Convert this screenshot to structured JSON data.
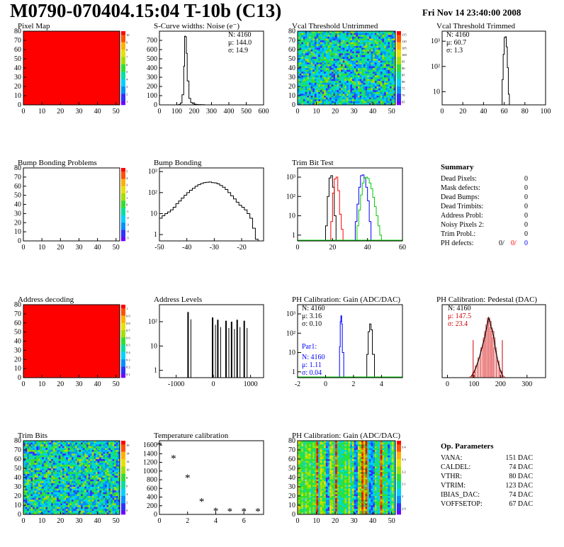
{
  "header": {
    "title": "M0790-070404.15:04 T-10b (C13)",
    "date": "Fri Nov 14 23:40:00 2008"
  },
  "colors": {
    "red": "#ff0000",
    "blue": "#0000ff",
    "green": "#00cc00",
    "dark_red": "#cc0000"
  },
  "chart_data": [
    {
      "id": "pixel_map",
      "type": "heatmap",
      "title": "Pixel Map",
      "xticks": [
        "0",
        "10",
        "20",
        "30",
        "40",
        "50"
      ],
      "yticks": [
        "0",
        "10",
        "20",
        "30",
        "40",
        "50",
        "60",
        "70",
        "80"
      ],
      "xlim": [
        0,
        52
      ],
      "ylim": [
        0,
        80
      ],
      "pattern": "uniform",
      "palette_ticks": [
        "10",
        "9",
        "8",
        "7",
        "6",
        "5",
        "4",
        "3",
        "2",
        "1"
      ]
    },
    {
      "id": "scurve",
      "type": "bar",
      "title": "S-Curve widths: Noise (e⁻)",
      "xticks": [
        "0",
        "100",
        "200",
        "300",
        "400",
        "500",
        "600"
      ],
      "yticks": [
        "0",
        "100",
        "200",
        "300",
        "400",
        "500",
        "600",
        "700"
      ],
      "xlim": [
        0,
        600
      ],
      "ylim": [
        0,
        800
      ],
      "stats": [
        "N: 4160",
        "μ: 144.0",
        "σ: 14.9"
      ],
      "x": [
        100,
        110,
        120,
        130,
        140,
        145,
        150,
        155,
        160,
        170,
        180,
        190,
        200,
        210,
        220,
        240,
        260
      ],
      "values": [
        0,
        4,
        20,
        110,
        420,
        745,
        740,
        560,
        260,
        70,
        25,
        14,
        8,
        5,
        3,
        2,
        0
      ]
    },
    {
      "id": "vcal_untrimmed",
      "type": "heatmap",
      "title": "Vcal Threshold Untrimmed",
      "xticks": [
        "0",
        "10",
        "20",
        "30",
        "40",
        "50"
      ],
      "yticks": [
        "0",
        "10",
        "20",
        "30",
        "40",
        "50",
        "60",
        "70",
        "80"
      ],
      "xlim": [
        0,
        52
      ],
      "ylim": [
        0,
        80
      ],
      "pattern": "noise",
      "palette_ticks": [
        "115",
        "110",
        "105",
        "100",
        "95",
        "90",
        "85",
        "80",
        "75",
        "70",
        "65"
      ]
    },
    {
      "id": "vcal_trimmed",
      "type": "bar",
      "title": "Vcal Threshold Trimmed",
      "log": true,
      "xticks": [
        "0",
        "20",
        "40",
        "60",
        "80",
        "100"
      ],
      "yticks": [
        "10",
        "10²",
        "10³"
      ],
      "xlim": [
        0,
        100
      ],
      "ylim": [
        3,
        2500
      ],
      "stats": [
        "N: 4160",
        "μ: 60.7",
        "σ: 1.3"
      ],
      "x": [
        57,
        58,
        59,
        60,
        61,
        62,
        63,
        64,
        65
      ],
      "values": [
        3,
        30,
        300,
        1400,
        1500,
        600,
        90,
        8,
        3
      ]
    },
    {
      "id": "bump_problems",
      "type": "heatmap",
      "title": "Bump Bonding Problems",
      "xticks": [
        "0",
        "10",
        "20",
        "30",
        "40",
        "50"
      ],
      "yticks": [
        "0",
        "10",
        "20",
        "30",
        "40",
        "50",
        "60",
        "70",
        "80"
      ],
      "xlim": [
        0,
        52
      ],
      "ylim": [
        0,
        80
      ],
      "pattern": "empty",
      "palette_ticks": [
        "5",
        "4",
        "3",
        "2",
        "1",
        "0",
        "-1",
        "-2",
        "-3",
        "-4",
        "-5"
      ]
    },
    {
      "id": "bump_bonding",
      "type": "bar",
      "title": "Bump Bonding",
      "log": true,
      "xticks": [
        "-50",
        "-40",
        "-30",
        "-20"
      ],
      "yticks": [
        "1",
        "10",
        "10²",
        "10³"
      ],
      "xlim": [
        -50,
        -12
      ],
      "ylim": [
        0.5,
        1500
      ],
      "x": [
        -50,
        -49,
        -48,
        -47,
        -46,
        -45,
        -44,
        -43,
        -42,
        -41,
        -40,
        -39,
        -38,
        -37,
        -36,
        -35,
        -34,
        -33,
        -32,
        -31,
        -30,
        -29,
        -28,
        -27,
        -26,
        -25,
        -24,
        -23,
        -22,
        -21,
        -20,
        -19,
        -18,
        -17,
        -16,
        -15,
        -14
      ],
      "values": [
        6,
        8,
        10,
        12,
        15,
        20,
        30,
        40,
        55,
        75,
        100,
        130,
        160,
        200,
        240,
        270,
        300,
        310,
        320,
        300,
        290,
        260,
        220,
        180,
        140,
        100,
        70,
        50,
        35,
        25,
        20,
        15,
        10,
        6,
        2,
        0.6,
        0.5
      ]
    },
    {
      "id": "trim_bit_test",
      "type": "line",
      "title": "Trim Bit Test",
      "log": true,
      "xticks": [
        "0",
        "20",
        "40",
        "60"
      ],
      "yticks": [
        "1",
        "10",
        "10²",
        "10³"
      ],
      "xlim": [
        0,
        60
      ],
      "ylim": [
        0.5,
        3000
      ],
      "series": [
        {
          "color": "#000000",
          "x": [
            15,
            16,
            17,
            18,
            19,
            20,
            21,
            22
          ],
          "values": [
            0.5,
            3,
            100,
            900,
            1200,
            300,
            10,
            0.5
          ]
        },
        {
          "color": "#ff0000",
          "x": [
            18,
            19,
            20,
            21,
            22,
            23,
            24,
            25,
            26
          ],
          "values": [
            0.5,
            5,
            150,
            800,
            1000,
            200,
            12,
            2,
            0.5
          ]
        },
        {
          "color": "#0000ff",
          "x": [
            32,
            33,
            34,
            35,
            36,
            37,
            38,
            39,
            40,
            41,
            42,
            43
          ],
          "values": [
            0.5,
            5,
            40,
            300,
            1200,
            1300,
            900,
            300,
            60,
            5,
            0.5,
            0.5
          ]
        },
        {
          "color": "#00cc00",
          "x": [
            33,
            34,
            35,
            36,
            37,
            38,
            39,
            40,
            41,
            42,
            43,
            44,
            45,
            46,
            47,
            48
          ],
          "values": [
            0.5,
            3,
            20,
            120,
            500,
            900,
            1000,
            850,
            500,
            250,
            90,
            30,
            10,
            3,
            1,
            0.5
          ]
        }
      ]
    },
    {
      "id": "summary",
      "type": "table",
      "title": "Summary",
      "rows": [
        {
          "label": "Dead Pixels:",
          "value": "0"
        },
        {
          "label": "Mask defects:",
          "value": "0"
        },
        {
          "label": "Dead Bumps:",
          "value": "0"
        },
        {
          "label": "Dead Trimbits:",
          "value": "0"
        },
        {
          "label": "Address Probl:",
          "value": "0"
        },
        {
          "label": "Noisy Pixels 2:",
          "value": "0"
        },
        {
          "label": "Trim Probl.:",
          "value": "0"
        }
      ],
      "ph_defects": {
        "label": "PH defects:",
        "v1": "0/",
        "v2": "0/",
        "v3": "0"
      }
    },
    {
      "id": "address_decoding",
      "type": "heatmap",
      "title": "Address decoding",
      "xticks": [
        "0",
        "10",
        "20",
        "30",
        "40",
        "50"
      ],
      "yticks": [
        "0",
        "10",
        "20",
        "30",
        "40",
        "50",
        "60",
        "70",
        "80"
      ],
      "xlim": [
        0,
        52
      ],
      "ylim": [
        0,
        80
      ],
      "pattern": "uniform",
      "palette_ticks": [
        "1",
        "0.9",
        "0.8",
        "0.7",
        "0.6",
        "0.5",
        "0.4",
        "0.3",
        "0.2",
        "0.1"
      ]
    },
    {
      "id": "address_levels",
      "type": "bar",
      "title": "Address Levels",
      "log": true,
      "xticks": [
        "-1000",
        "0",
        "1000"
      ],
      "yticks": [
        "1",
        "10",
        "10²"
      ],
      "xlim": [
        -1450,
        1350
      ],
      "ylim": [
        0.5,
        500
      ],
      "x": [
        -680,
        -20,
        120,
        340,
        490,
        640,
        830
      ],
      "values": [
        250,
        150,
        120,
        110,
        100,
        120,
        110
      ]
    },
    {
      "id": "ph_gain",
      "type": "line",
      "title": "PH Calibration: Gain (ADC/DAC)",
      "log": true,
      "xticks": [
        "-2",
        "0",
        "2",
        "4"
      ],
      "yticks": [
        "1",
        "10",
        "10²",
        "10³"
      ],
      "xlim": [
        -2,
        5.5
      ],
      "ylim": [
        0.5,
        3000
      ],
      "stats": [
        "N: 4160",
        "μ: 3.16",
        "σ: 0.10"
      ],
      "stats2_title": "Par1:",
      "stats2": [
        "N: 4160",
        "μ: 1.11",
        "σ: 0.04"
      ],
      "series": [
        {
          "color": "#0000ff",
          "x": [
            0.9,
            1.0,
            1.05,
            1.1,
            1.15,
            1.2,
            1.3
          ],
          "values": [
            0.5,
            20,
            400,
            800,
            300,
            10,
            0.5
          ]
        },
        {
          "color": "#000000",
          "x": [
            2.8,
            2.95,
            3.05,
            3.15,
            3.25,
            3.35,
            3.5
          ],
          "values": [
            0.5,
            8,
            120,
            300,
            150,
            8,
            0.5
          ]
        }
      ]
    },
    {
      "id": "ph_pedestal",
      "type": "bar",
      "title": "PH Calibration: Pedestal (DAC)",
      "xticks": [
        "0",
        "100",
        "200",
        "300"
      ],
      "xlim": [
        -20,
        370
      ],
      "ylim": [
        0,
        110
      ],
      "stats": [
        "N: 4160",
        "μ: 147.5",
        "σ: 23.4"
      ],
      "markers": [
        97,
        207
      ],
      "x": [
        90,
        100,
        110,
        120,
        130,
        140,
        145,
        150,
        155,
        160,
        165,
        170,
        175,
        180,
        190,
        200,
        210
      ],
      "values": [
        2,
        8,
        18,
        30,
        45,
        60,
        70,
        80,
        90,
        85,
        75,
        70,
        60,
        45,
        25,
        10,
        2
      ]
    },
    {
      "id": "trim_bits",
      "type": "heatmap",
      "title": "Trim Bits",
      "xticks": [
        "0",
        "10",
        "20",
        "30",
        "40",
        "50"
      ],
      "yticks": [
        "0",
        "10",
        "20",
        "30",
        "40",
        "50",
        "60",
        "70",
        "80"
      ],
      "xlim": [
        0,
        52
      ],
      "ylim": [
        0,
        80
      ],
      "pattern": "noise",
      "palette_ticks": [
        "16",
        "14",
        "12",
        "10",
        "8",
        "6",
        "4",
        "2",
        "0"
      ]
    },
    {
      "id": "temperature",
      "type": "scatter",
      "title": "Temperature calibration",
      "xticks": [
        "0",
        "2",
        "4",
        "6"
      ],
      "yticks": [
        "0",
        "200",
        "400",
        "600",
        "800",
        "1000",
        "1200",
        "1400",
        "1600"
      ],
      "xlim": [
        0,
        7.4
      ],
      "ylim": [
        0,
        1700
      ],
      "x": [
        0,
        1,
        2,
        3,
        4,
        5,
        6,
        7
      ],
      "values": [
        1600,
        1300,
        850,
        300,
        80,
        70,
        70,
        70
      ]
    },
    {
      "id": "ph_gain_map",
      "type": "heatmap",
      "title": "PH Calibration: Gain (ADC/DAC)",
      "xticks": [
        "0",
        "10",
        "20",
        "30",
        "40",
        "50"
      ],
      "yticks": [
        "0",
        "10",
        "20",
        "30",
        "40",
        "50",
        "60",
        "70",
        "80"
      ],
      "xlim": [
        0,
        52
      ],
      "ylim": [
        0,
        80
      ],
      "pattern": "columns",
      "palette_ticks": [
        "3.4",
        "3.3",
        "3.2",
        "3.1",
        "3",
        "2.9"
      ]
    },
    {
      "id": "op_params",
      "type": "table",
      "title": "Op. Parameters",
      "rows": [
        {
          "label": "VANA:",
          "value": "151 DAC"
        },
        {
          "label": "CALDEL:",
          "value": "74 DAC"
        },
        {
          "label": "VTHR:",
          "value": "80 DAC"
        },
        {
          "label": "VTRIM:",
          "value": "123 DAC"
        },
        {
          "label": "IBIAS_DAC:",
          "value": "74 DAC"
        },
        {
          "label": "VOFFSETOP:",
          "value": "67 DAC"
        }
      ]
    }
  ]
}
